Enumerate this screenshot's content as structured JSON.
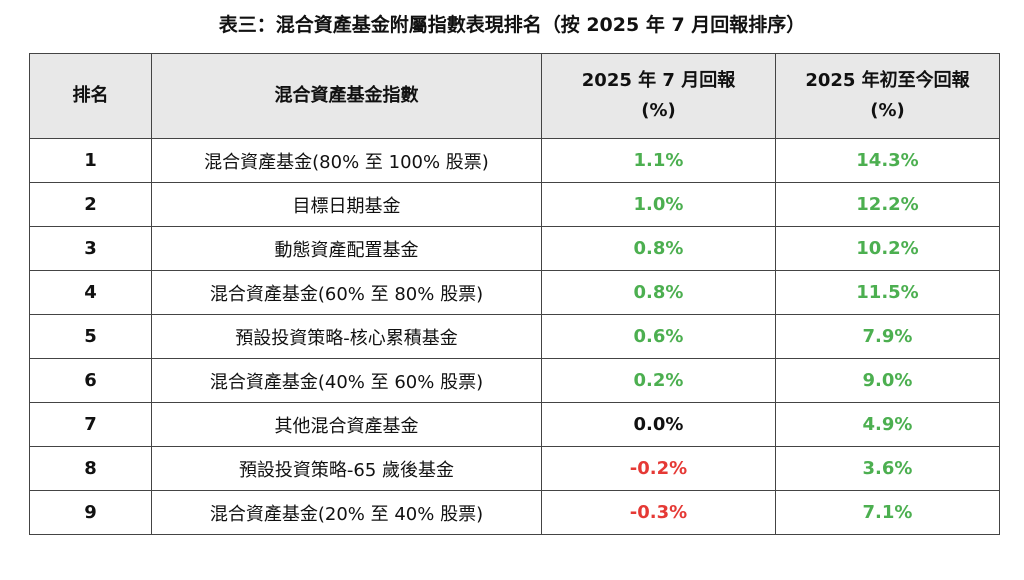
{
  "title": "表三：混合資產基金附屬指數表現排名（按 2025 年 7 月回報排序）",
  "colors": {
    "positive": "#4caf50",
    "negative": "#e53935",
    "neutral": "#111111",
    "header_bg": "#e8e8e8"
  },
  "table": {
    "headers": {
      "rank": "排名",
      "name": "混合資產基金指數",
      "month_line1": "2025 年 7 月回報",
      "month_line2": "(%)",
      "ytd_line1": "2025 年初至今回報",
      "ytd_line2": "(%)"
    },
    "rows": [
      {
        "rank": "1",
        "name": "混合資產基金(80% 至 100% 股票)",
        "month": "1.1%",
        "month_tone": "positive",
        "ytd": "14.3%",
        "ytd_tone": "positive"
      },
      {
        "rank": "2",
        "name": "目標日期基金",
        "month": "1.0%",
        "month_tone": "positive",
        "ytd": "12.2%",
        "ytd_tone": "positive"
      },
      {
        "rank": "3",
        "name": "動態資產配置基金",
        "month": "0.8%",
        "month_tone": "positive",
        "ytd": "10.2%",
        "ytd_tone": "positive"
      },
      {
        "rank": "4",
        "name": "混合資產基金(60% 至 80% 股票)",
        "month": "0.8%",
        "month_tone": "positive",
        "ytd": "11.5%",
        "ytd_tone": "positive"
      },
      {
        "rank": "5",
        "name": "預設投資策略-核心累積基金",
        "month": "0.6%",
        "month_tone": "positive",
        "ytd": "7.9%",
        "ytd_tone": "positive"
      },
      {
        "rank": "6",
        "name": "混合資產基金(40% 至 60% 股票)",
        "month": "0.2%",
        "month_tone": "positive",
        "ytd": "9.0%",
        "ytd_tone": "positive"
      },
      {
        "rank": "7",
        "name": "其他混合資產基金",
        "month": "0.0%",
        "month_tone": "neutral",
        "ytd": "4.9%",
        "ytd_tone": "positive"
      },
      {
        "rank": "8",
        "name": "預設投資策略-65 歲後基金",
        "month": "-0.2%",
        "month_tone": "negative",
        "ytd": "3.6%",
        "ytd_tone": "positive"
      },
      {
        "rank": "9",
        "name": "混合資產基金(20% 至 40% 股票)",
        "month": "-0.3%",
        "month_tone": "negative",
        "ytd": "7.1%",
        "ytd_tone": "positive"
      }
    ]
  }
}
